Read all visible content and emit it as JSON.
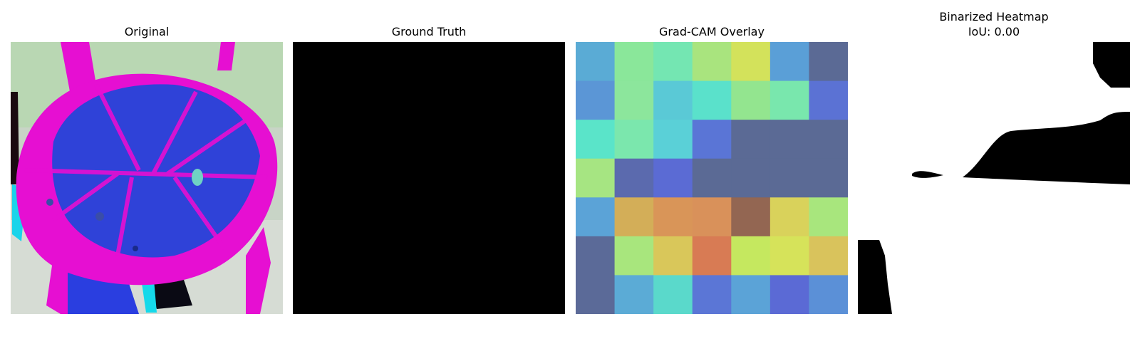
{
  "panels": {
    "original": {
      "title": "Original"
    },
    "ground_truth": {
      "title": "Ground Truth"
    },
    "gradcam": {
      "title": "Grad-CAM Overlay",
      "cell_colors": [
        [
          "#5aabd5",
          "#8ae79a",
          "#74e6b2",
          "#a9e47e",
          "#d3e25b",
          "#5a9fd7",
          "#5b6a95"
        ],
        [
          "#5b96d6",
          "#8ce69c",
          "#5ac9d6",
          "#5ae1cb",
          "#93e58f",
          "#79e7ad",
          "#5b72d4"
        ],
        [
          "#5ae4c9",
          "#7be7ad",
          "#5ad0d7",
          "#5a75d6",
          "#5b6a95",
          "#5b6a95",
          "#5b6a95"
        ],
        [
          "#a6e582",
          "#5b6aae",
          "#5b6bd4",
          "#5b6a95",
          "#5b6a95",
          "#5b6a95",
          "#5b6a95"
        ],
        [
          "#5ba3d7",
          "#d3ae58",
          "#d99558",
          "#d9915a",
          "#936652",
          "#d9d25b",
          "#a8e67d"
        ],
        [
          "#5b6a98",
          "#a8e67d",
          "#d9c75a",
          "#d87b54",
          "#c5e85f",
          "#d6e35a",
          "#d9c35c"
        ],
        [
          "#5b6a98",
          "#5babd6",
          "#5ad9cb",
          "#5b76d6",
          "#5ba3d7",
          "#5b6ad5",
          "#5b90d7"
        ]
      ]
    },
    "binarized": {
      "title": "Binarized Heatmap",
      "iou_label": "IoU: 0.00"
    }
  }
}
